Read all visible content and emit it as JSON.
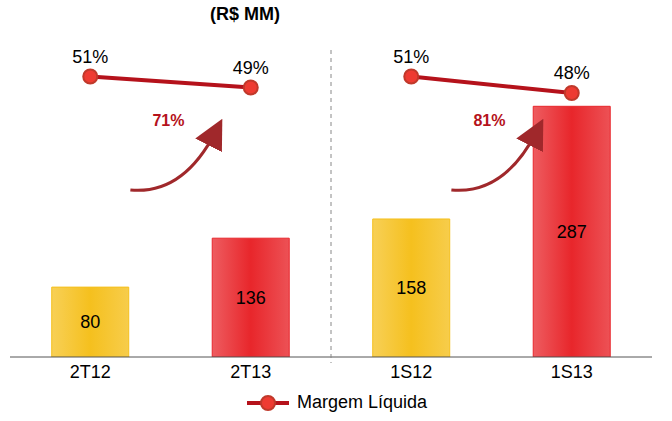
{
  "chart_data": {
    "type": "bar",
    "title": "(R$ MM)",
    "categories": [
      "2T12",
      "2T13",
      "1S12",
      "1S13"
    ],
    "values": [
      80,
      136,
      158,
      287
    ],
    "colors": [
      "#f5c01e",
      "#e8262b",
      "#f5c01e",
      "#e8262b"
    ],
    "data_labels": true,
    "ylim": [
      0,
      340
    ],
    "yticks": [
      0,
      340
    ],
    "y2lim": [
      0,
      54
    ],
    "y2ticks": [
      0,
      54
    ],
    "tick_labels": "x",
    "legend": "bottom",
    "series": [
      {
        "name": "Margem Líquida",
        "type": "line",
        "axis": "y2",
        "color": "#b5121b",
        "marker": "circle",
        "values": [
          51,
          49,
          51,
          48
        ],
        "value_labels": [
          "51%",
          "49%",
          "51%",
          "48%"
        ]
      }
    ],
    "annotations": [
      {
        "text": "71%",
        "from": "2T12",
        "to": "2T13"
      },
      {
        "text": "81%",
        "from": "1S12",
        "to": "1S13"
      }
    ]
  }
}
